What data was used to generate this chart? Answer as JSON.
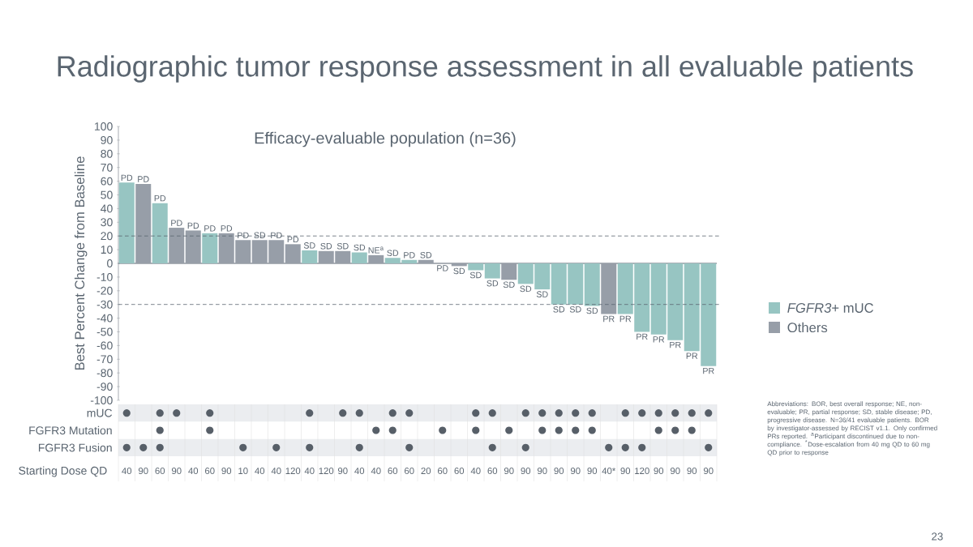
{
  "chart_data": [
    {
      "type": "bar",
      "title": "Radiographic tumor response assessment in all evaluable patients",
      "subtitle": "Efficacy-evaluable population (n=36)",
      "ylabel": "Best Percent Change from Baseline",
      "categories": [
        null,
        null,
        null,
        null,
        null,
        null,
        null,
        null,
        null,
        null,
        null,
        null,
        null,
        null,
        null,
        null,
        null,
        null,
        null,
        null,
        null,
        null,
        null,
        null,
        null,
        null,
        null,
        null,
        null,
        null,
        null,
        null,
        null,
        null,
        null,
        null
      ],
      "series": [
        {
          "name": "*FGFR3*+ mUC",
          "color": "#97c5c2",
          "values": [
            59,
            null,
            44,
            null,
            null,
            22,
            null,
            null,
            null,
            null,
            null,
            9.5,
            null,
            null,
            8,
            null,
            4,
            2.5,
            null,
            null,
            null,
            -5,
            -11,
            null,
            -15,
            -19,
            -30,
            -30,
            -31,
            null,
            -37,
            -50,
            -52,
            -56,
            -64,
            -75
          ],
          "value_labels": [
            "PD",
            null,
            "PD",
            null,
            null,
            "PD",
            null,
            null,
            null,
            null,
            null,
            "SD",
            null,
            null,
            "SD",
            null,
            "SD",
            "PD",
            null,
            null,
            null,
            "SD",
            "SD",
            null,
            "SD",
            "SD",
            "SD",
            "SD",
            "SD",
            null,
            "PR",
            "PR",
            "PR",
            "PR",
            "PR",
            "PR"
          ]
        },
        {
          "name": "Others",
          "color": "#979ea8",
          "values": [
            null,
            58,
            null,
            26,
            24,
            null,
            22,
            17,
            17,
            17,
            14,
            null,
            9,
            9,
            null,
            6,
            null,
            null,
            2.5,
            0,
            -2,
            null,
            null,
            -12,
            null,
            null,
            null,
            null,
            null,
            -37,
            null,
            null,
            null,
            null,
            null,
            null
          ],
          "value_labels": [
            null,
            "PD",
            null,
            "PD",
            "PD",
            null,
            "PD",
            "PD",
            "SD",
            "PD",
            "PD",
            null,
            "SD",
            "SD",
            null,
            "NE$^{a}$",
            null,
            null,
            "SD",
            "PD",
            "SD",
            null,
            null,
            "SD",
            null,
            null,
            null,
            null,
            null,
            "PR",
            null,
            null,
            null,
            null,
            null,
            null
          ]
        }
      ],
      "ylim": [
        -100,
        100
      ],
      "yticks": [
        -100,
        -90,
        -80,
        -70,
        -60,
        -50,
        -40,
        -30,
        -20,
        -10,
        0,
        10,
        20,
        30,
        40,
        50,
        60,
        70,
        80,
        90,
        100
      ],
      "ref_lines": [
        {
          "axis": "y",
          "value": 20,
          "color": "#5a6570",
          "line_style": "dashed"
        },
        {
          "axis": "y",
          "value": -30,
          "color": "#5a6570",
          "line_style": "dashed"
        }
      ],
      "legend": "right",
      "annotations": [
        "Abbreviations: BOR, best overall response; NE, non-evaluable; PR, partial response; SD, stable disease; PD, progressive disease. N=36/41 evaluable patients. BOR by investigator-assessed by RECIST v1.1. Only confirmed PRs reported. $^{a}$Participant discontinued due to non-compliance. $^{*}$Dose-escalation from 40 mg QD to 60 mg QD prior to response",
        "23"
      ]
    },
    {
      "type": "heatmap",
      "xlabel": "Starting Dose QD",
      "categories": [
        "40",
        "90",
        "60",
        "90",
        "40",
        "60",
        "90",
        "10",
        "40",
        "40",
        "120",
        "40",
        "120",
        "90",
        "40",
        "40",
        "60",
        "60",
        "20",
        "60",
        "60",
        "40",
        "60",
        "90",
        "90",
        "90",
        "90",
        "90",
        "90",
        "40*",
        "90",
        "120",
        "90",
        "90",
        "90",
        "90"
      ],
      "y_categories": [
        "mUC",
        "FGFR3 Mutation",
        "FGFR3 Fusion"
      ],
      "cells": [
        [
          "●",
          null,
          "●",
          "●",
          null,
          "●",
          null,
          null,
          null,
          null,
          null,
          "●",
          null,
          "●",
          "●",
          null,
          "●",
          "●",
          null,
          null,
          null,
          "●",
          "●",
          null,
          "●",
          "●",
          "●",
          "●",
          "●",
          null,
          "●",
          "●",
          "●",
          "●",
          "●",
          "●"
        ],
        [
          null,
          null,
          "●",
          null,
          null,
          "●",
          null,
          null,
          null,
          null,
          null,
          null,
          null,
          null,
          null,
          "●",
          "●",
          null,
          null,
          "●",
          null,
          "●",
          null,
          "●",
          null,
          "●",
          "●",
          "●",
          "●",
          null,
          null,
          null,
          "●",
          "●",
          "●",
          null
        ],
        [
          "●",
          "●",
          "●",
          null,
          null,
          null,
          null,
          "●",
          null,
          "●",
          null,
          "●",
          null,
          null,
          "●",
          null,
          null,
          "●",
          null,
          null,
          null,
          null,
          "●",
          null,
          "●",
          null,
          null,
          null,
          null,
          "●",
          "●",
          "●",
          null,
          null,
          null,
          "●"
        ]
      ]
    }
  ]
}
